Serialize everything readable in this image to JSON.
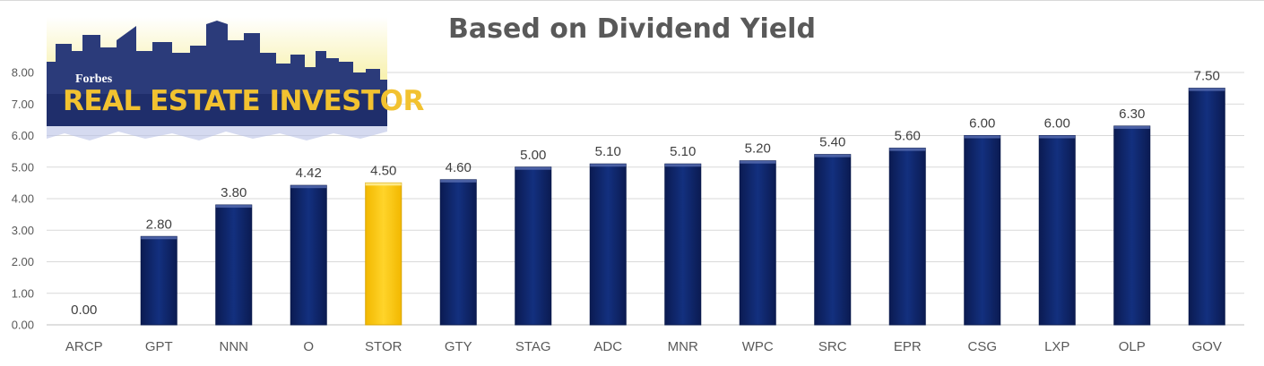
{
  "chart_data": {
    "type": "bar",
    "title": "Based on Dividend Yield",
    "categories": [
      "ARCP",
      "GPT",
      "NNN",
      "O",
      "STOR",
      "GTY",
      "STAG",
      "ADC",
      "MNR",
      "WPC",
      "SRC",
      "EPR",
      "CSG",
      "LXP",
      "OLP",
      "GOV"
    ],
    "values": [
      0.0,
      2.8,
      3.8,
      4.42,
      4.5,
      4.6,
      5.0,
      5.1,
      5.1,
      5.2,
      5.4,
      5.6,
      6.0,
      6.0,
      6.3,
      7.5
    ],
    "data_labels": [
      "0.00",
      "2.80",
      "3.80",
      "4.42",
      "4.50",
      "4.60",
      "5.00",
      "5.10",
      "5.10",
      "5.20",
      "5.40",
      "5.60",
      "6.00",
      "6.00",
      "6.30",
      "7.50"
    ],
    "highlight": "STOR",
    "yticks": [
      "0.00",
      "1.00",
      "2.00",
      "3.00",
      "4.00",
      "5.00",
      "6.00",
      "7.00",
      "8.00"
    ],
    "ylim": [
      0,
      8
    ],
    "grid": true,
    "colors": {
      "bar": "#0f2466",
      "bar_highlight": "#ffcc00",
      "grid": "#d9d9d9",
      "text": "#595959"
    }
  },
  "logo": {
    "forbes": "Forbes",
    "text": "REAL ESTATE INVESTOR"
  }
}
